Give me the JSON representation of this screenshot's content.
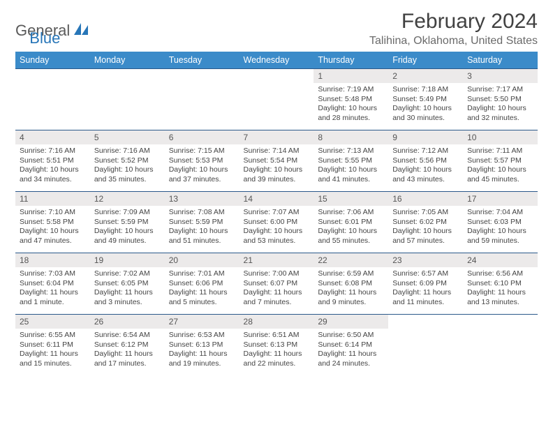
{
  "logo": {
    "word1": "General",
    "word2": "Blue"
  },
  "title": "February 2024",
  "location": "Talihina, Oklahoma, United States",
  "colors": {
    "header_bg": "#3b8bc9",
    "header_text": "#ffffff",
    "daynum_bg": "#eceaea",
    "row_border": "#2a588a",
    "logo_blue": "#2876b8",
    "text": "#444444"
  },
  "fonts": {
    "title_size": 30,
    "location_size": 16,
    "th_size": 12.5,
    "cell_size": 10.5,
    "daynum_size": 12
  },
  "day_headers": [
    "Sunday",
    "Monday",
    "Tuesday",
    "Wednesday",
    "Thursday",
    "Friday",
    "Saturday"
  ],
  "weeks": [
    [
      {
        "n": "",
        "sr": "",
        "ss": "",
        "dl": ""
      },
      {
        "n": "",
        "sr": "",
        "ss": "",
        "dl": ""
      },
      {
        "n": "",
        "sr": "",
        "ss": "",
        "dl": ""
      },
      {
        "n": "",
        "sr": "",
        "ss": "",
        "dl": ""
      },
      {
        "n": "1",
        "sr": "Sunrise: 7:19 AM",
        "ss": "Sunset: 5:48 PM",
        "dl": "Daylight: 10 hours and 28 minutes."
      },
      {
        "n": "2",
        "sr": "Sunrise: 7:18 AM",
        "ss": "Sunset: 5:49 PM",
        "dl": "Daylight: 10 hours and 30 minutes."
      },
      {
        "n": "3",
        "sr": "Sunrise: 7:17 AM",
        "ss": "Sunset: 5:50 PM",
        "dl": "Daylight: 10 hours and 32 minutes."
      }
    ],
    [
      {
        "n": "4",
        "sr": "Sunrise: 7:16 AM",
        "ss": "Sunset: 5:51 PM",
        "dl": "Daylight: 10 hours and 34 minutes."
      },
      {
        "n": "5",
        "sr": "Sunrise: 7:16 AM",
        "ss": "Sunset: 5:52 PM",
        "dl": "Daylight: 10 hours and 35 minutes."
      },
      {
        "n": "6",
        "sr": "Sunrise: 7:15 AM",
        "ss": "Sunset: 5:53 PM",
        "dl": "Daylight: 10 hours and 37 minutes."
      },
      {
        "n": "7",
        "sr": "Sunrise: 7:14 AM",
        "ss": "Sunset: 5:54 PM",
        "dl": "Daylight: 10 hours and 39 minutes."
      },
      {
        "n": "8",
        "sr": "Sunrise: 7:13 AM",
        "ss": "Sunset: 5:55 PM",
        "dl": "Daylight: 10 hours and 41 minutes."
      },
      {
        "n": "9",
        "sr": "Sunrise: 7:12 AM",
        "ss": "Sunset: 5:56 PM",
        "dl": "Daylight: 10 hours and 43 minutes."
      },
      {
        "n": "10",
        "sr": "Sunrise: 7:11 AM",
        "ss": "Sunset: 5:57 PM",
        "dl": "Daylight: 10 hours and 45 minutes."
      }
    ],
    [
      {
        "n": "11",
        "sr": "Sunrise: 7:10 AM",
        "ss": "Sunset: 5:58 PM",
        "dl": "Daylight: 10 hours and 47 minutes."
      },
      {
        "n": "12",
        "sr": "Sunrise: 7:09 AM",
        "ss": "Sunset: 5:59 PM",
        "dl": "Daylight: 10 hours and 49 minutes."
      },
      {
        "n": "13",
        "sr": "Sunrise: 7:08 AM",
        "ss": "Sunset: 5:59 PM",
        "dl": "Daylight: 10 hours and 51 minutes."
      },
      {
        "n": "14",
        "sr": "Sunrise: 7:07 AM",
        "ss": "Sunset: 6:00 PM",
        "dl": "Daylight: 10 hours and 53 minutes."
      },
      {
        "n": "15",
        "sr": "Sunrise: 7:06 AM",
        "ss": "Sunset: 6:01 PM",
        "dl": "Daylight: 10 hours and 55 minutes."
      },
      {
        "n": "16",
        "sr": "Sunrise: 7:05 AM",
        "ss": "Sunset: 6:02 PM",
        "dl": "Daylight: 10 hours and 57 minutes."
      },
      {
        "n": "17",
        "sr": "Sunrise: 7:04 AM",
        "ss": "Sunset: 6:03 PM",
        "dl": "Daylight: 10 hours and 59 minutes."
      }
    ],
    [
      {
        "n": "18",
        "sr": "Sunrise: 7:03 AM",
        "ss": "Sunset: 6:04 PM",
        "dl": "Daylight: 11 hours and 1 minute."
      },
      {
        "n": "19",
        "sr": "Sunrise: 7:02 AM",
        "ss": "Sunset: 6:05 PM",
        "dl": "Daylight: 11 hours and 3 minutes."
      },
      {
        "n": "20",
        "sr": "Sunrise: 7:01 AM",
        "ss": "Sunset: 6:06 PM",
        "dl": "Daylight: 11 hours and 5 minutes."
      },
      {
        "n": "21",
        "sr": "Sunrise: 7:00 AM",
        "ss": "Sunset: 6:07 PM",
        "dl": "Daylight: 11 hours and 7 minutes."
      },
      {
        "n": "22",
        "sr": "Sunrise: 6:59 AM",
        "ss": "Sunset: 6:08 PM",
        "dl": "Daylight: 11 hours and 9 minutes."
      },
      {
        "n": "23",
        "sr": "Sunrise: 6:57 AM",
        "ss": "Sunset: 6:09 PM",
        "dl": "Daylight: 11 hours and 11 minutes."
      },
      {
        "n": "24",
        "sr": "Sunrise: 6:56 AM",
        "ss": "Sunset: 6:10 PM",
        "dl": "Daylight: 11 hours and 13 minutes."
      }
    ],
    [
      {
        "n": "25",
        "sr": "Sunrise: 6:55 AM",
        "ss": "Sunset: 6:11 PM",
        "dl": "Daylight: 11 hours and 15 minutes."
      },
      {
        "n": "26",
        "sr": "Sunrise: 6:54 AM",
        "ss": "Sunset: 6:12 PM",
        "dl": "Daylight: 11 hours and 17 minutes."
      },
      {
        "n": "27",
        "sr": "Sunrise: 6:53 AM",
        "ss": "Sunset: 6:13 PM",
        "dl": "Daylight: 11 hours and 19 minutes."
      },
      {
        "n": "28",
        "sr": "Sunrise: 6:51 AM",
        "ss": "Sunset: 6:13 PM",
        "dl": "Daylight: 11 hours and 22 minutes."
      },
      {
        "n": "29",
        "sr": "Sunrise: 6:50 AM",
        "ss": "Sunset: 6:14 PM",
        "dl": "Daylight: 11 hours and 24 minutes."
      },
      {
        "n": "",
        "sr": "",
        "ss": "",
        "dl": ""
      },
      {
        "n": "",
        "sr": "",
        "ss": "",
        "dl": ""
      }
    ]
  ]
}
